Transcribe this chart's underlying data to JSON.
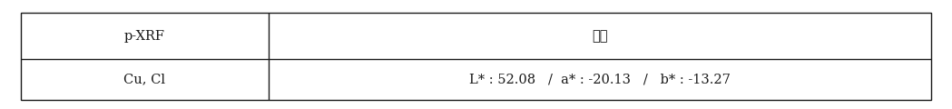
{
  "col1_header": "p-XRF",
  "col2_header": "색도",
  "col1_data": "Cu, Cl",
  "col2_data": "L* : 52.08   /  a* : -20.13   /   b* : -13.27",
  "border_color": "#1a1a1a",
  "bg_color": "#ffffff",
  "text_color": "#1a1a1a",
  "font_size": 10.5,
  "col_split_ratio": 0.272,
  "fig_width": 10.49,
  "fig_height": 1.2,
  "dpi": 100
}
